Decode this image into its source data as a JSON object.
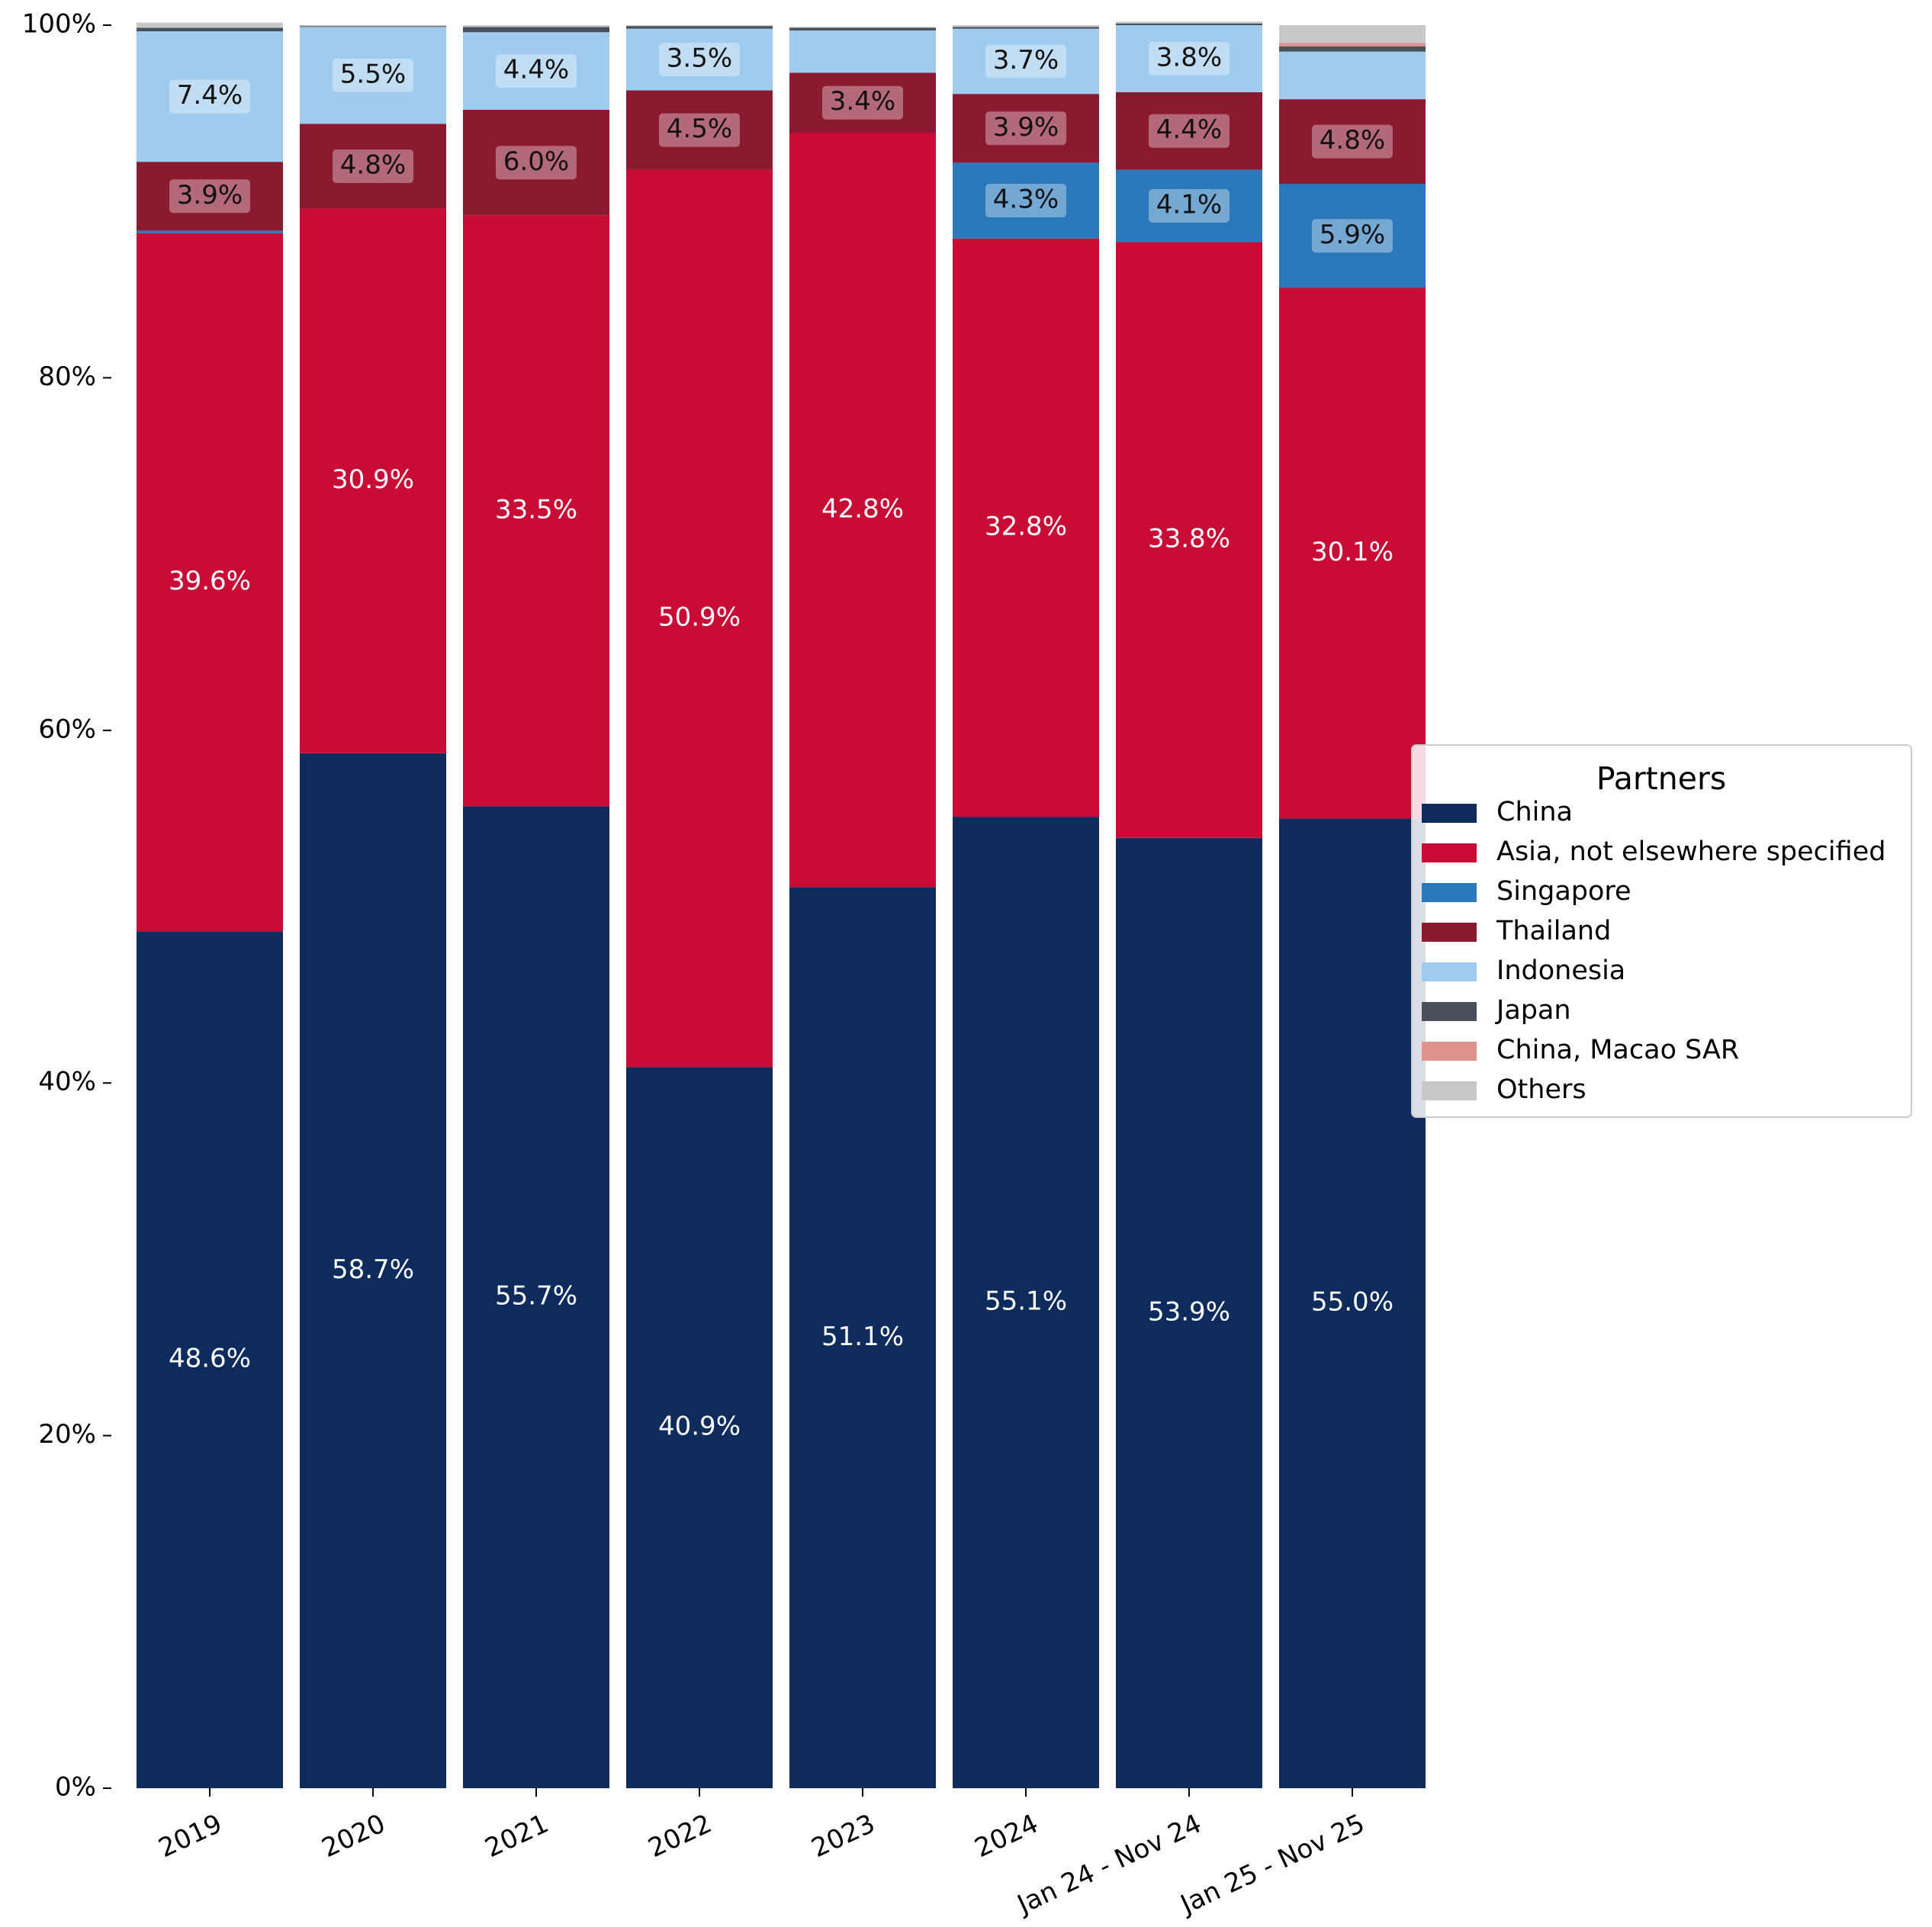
{
  "chart_data": {
    "type": "bar",
    "stacked": true,
    "normalized": true,
    "categories": [
      "2019",
      "2020",
      "2021",
      "2022",
      "2023",
      "2024",
      "Jan 24 - Nov 24",
      "Jan 25 - Nov 25"
    ],
    "series": [
      {
        "name": "China",
        "color": "#0d2b5c",
        "values": [
          48.6,
          58.7,
          55.7,
          40.9,
          51.1,
          55.1,
          53.9,
          55.0
        ]
      },
      {
        "name": "Asia, not elsewhere specified",
        "color": "#c90c35",
        "values": [
          39.6,
          30.9,
          33.5,
          50.9,
          42.8,
          32.8,
          33.8,
          30.1
        ]
      },
      {
        "name": "Singapore",
        "color": "#2a78bb",
        "values": [
          0.15,
          0.0,
          0.0,
          0.0,
          0.0,
          4.3,
          4.1,
          5.9
        ]
      },
      {
        "name": "Thailand",
        "color": "#8b1a31",
        "values": [
          3.9,
          4.8,
          6.0,
          4.5,
          3.4,
          3.9,
          4.4,
          4.8
        ]
      },
      {
        "name": "Indonesia",
        "color": "#9ecbee",
        "values": [
          7.4,
          5.5,
          4.4,
          3.5,
          2.4,
          3.7,
          3.8,
          2.7
        ]
      },
      {
        "name": "Japan",
        "color": "#4a5059",
        "values": [
          0.2,
          0.05,
          0.3,
          0.15,
          0.15,
          0.1,
          0.1,
          0.3
        ]
      },
      {
        "name": "China, Macao SAR",
        "color": "#e0928f",
        "values": [
          0.0,
          0.0,
          0.0,
          0.0,
          0.0,
          0.0,
          0.0,
          0.2
        ]
      },
      {
        "name": "Others",
        "color": "#c8c8c8",
        "values": [
          0.3,
          0.05,
          0.1,
          0.05,
          0.05,
          0.1,
          0.1,
          1.0
        ]
      }
    ],
    "value_labels": [
      [
        "48.6%",
        "58.7%",
        "55.7%",
        "40.9%",
        "51.1%",
        "55.1%",
        "53.9%",
        "55.0%"
      ],
      [
        "39.6%",
        "30.9%",
        "33.5%",
        "50.9%",
        "42.8%",
        "32.8%",
        "33.8%",
        "30.1%"
      ],
      [
        "",
        "",
        "",
        "",
        "",
        "4.3%",
        "4.1%",
        "5.9%"
      ],
      [
        "3.9%",
        "4.8%",
        "6.0%",
        "4.5%",
        "3.4%",
        "3.9%",
        "4.4%",
        "4.8%"
      ],
      [
        "7.4%",
        "5.5%",
        "4.4%",
        "3.5%",
        "",
        "3.7%",
        "3.8%",
        ""
      ],
      [
        "",
        "",
        "",
        "",
        "",
        "",
        "",
        ""
      ],
      [
        "",
        "",
        "",
        "",
        "",
        "",
        "",
        ""
      ],
      [
        "",
        "",
        "",
        "",
        "",
        "",
        "",
        ""
      ]
    ],
    "y_ticks": [
      "0%",
      "20%",
      "40%",
      "60%",
      "80%",
      "100%"
    ],
    "y_tick_values": [
      0,
      20,
      40,
      60,
      80,
      100
    ],
    "ylim": [
      0,
      100
    ],
    "grid": false,
    "legend": {
      "title": "Partners",
      "placement": "center-right"
    },
    "title": "",
    "xlabel": "",
    "ylabel": ""
  }
}
